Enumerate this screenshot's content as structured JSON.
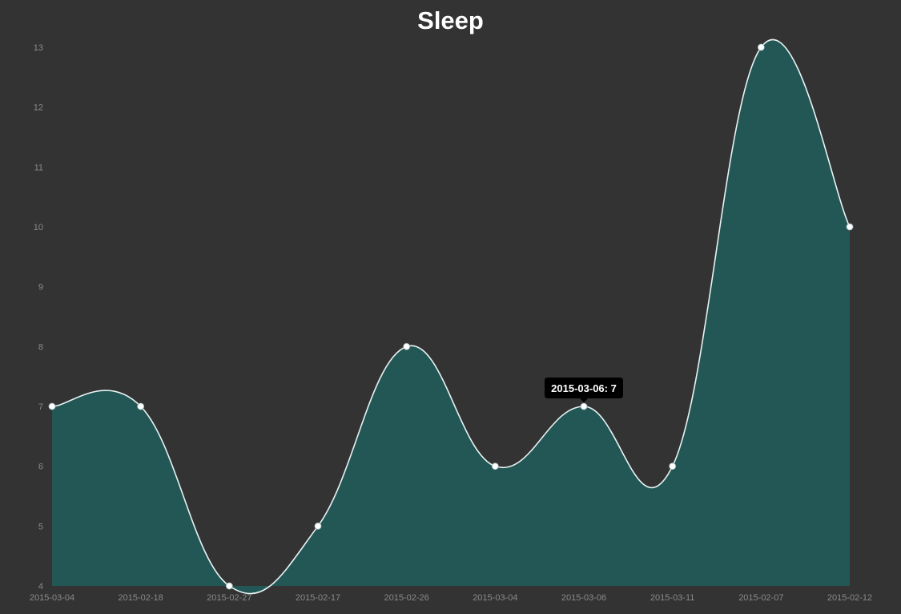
{
  "chart_data": {
    "type": "area",
    "title": "Sleep",
    "xlabel": "",
    "ylabel": "",
    "categories": [
      "2015-03-04",
      "2015-02-18",
      "2015-02-27",
      "2015-02-17",
      "2015-02-26",
      "2015-03-04",
      "2015-03-06",
      "2015-03-11",
      "2015-02-07",
      "2015-02-12"
    ],
    "values": [
      7,
      7,
      4,
      5,
      8,
      6,
      7,
      6,
      13,
      10
    ],
    "ylim": [
      4,
      13
    ],
    "yticks": [
      4,
      5,
      6,
      7,
      8,
      9,
      10,
      11,
      12,
      13
    ],
    "grid": false,
    "fill_color": "#225756",
    "line_color": "#e8f2f2",
    "point_color": "#ffffff",
    "tooltip": {
      "index": 6,
      "text": "2015-03-06: 7"
    }
  }
}
